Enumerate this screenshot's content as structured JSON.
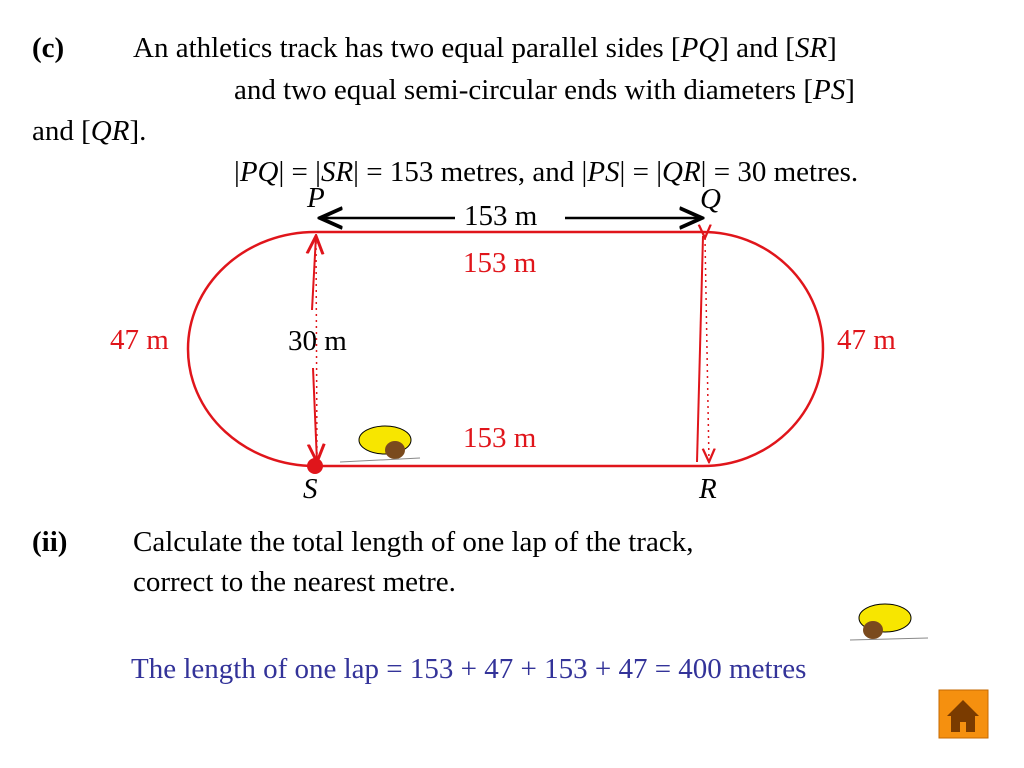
{
  "question": {
    "label": "(c)",
    "lines": [
      [
        "An athletics track has two equal parallel sides [",
        "PQ",
        "] and [",
        "SR",
        "]"
      ],
      [
        "and two equal semi-circular ends with diameters [",
        "PS",
        "]"
      ],
      [
        "and [",
        "QR",
        "]."
      ],
      [
        "|",
        "PQ",
        "| = |",
        "SR",
        "| = 153 metres, and |",
        "PS",
        "| = |",
        "QR",
        "| = 30 metres."
      ]
    ]
  },
  "diagram": {
    "points": {
      "P": "P",
      "Q": "Q",
      "R": "R",
      "S": "S"
    },
    "top_arrow_label": "153 m",
    "top_side": "153 m",
    "bottom_side": "153 m",
    "left_end": "47 m",
    "right_end": "47 m",
    "diameter": "30 m"
  },
  "part_ii": {
    "label": "(ii)",
    "lines": [
      "Calculate the total length of one lap of the track,",
      "correct to the nearest metre."
    ]
  },
  "answer": "The length of one lap = 153 + 47 + 153 + 47 = 400 metres"
}
